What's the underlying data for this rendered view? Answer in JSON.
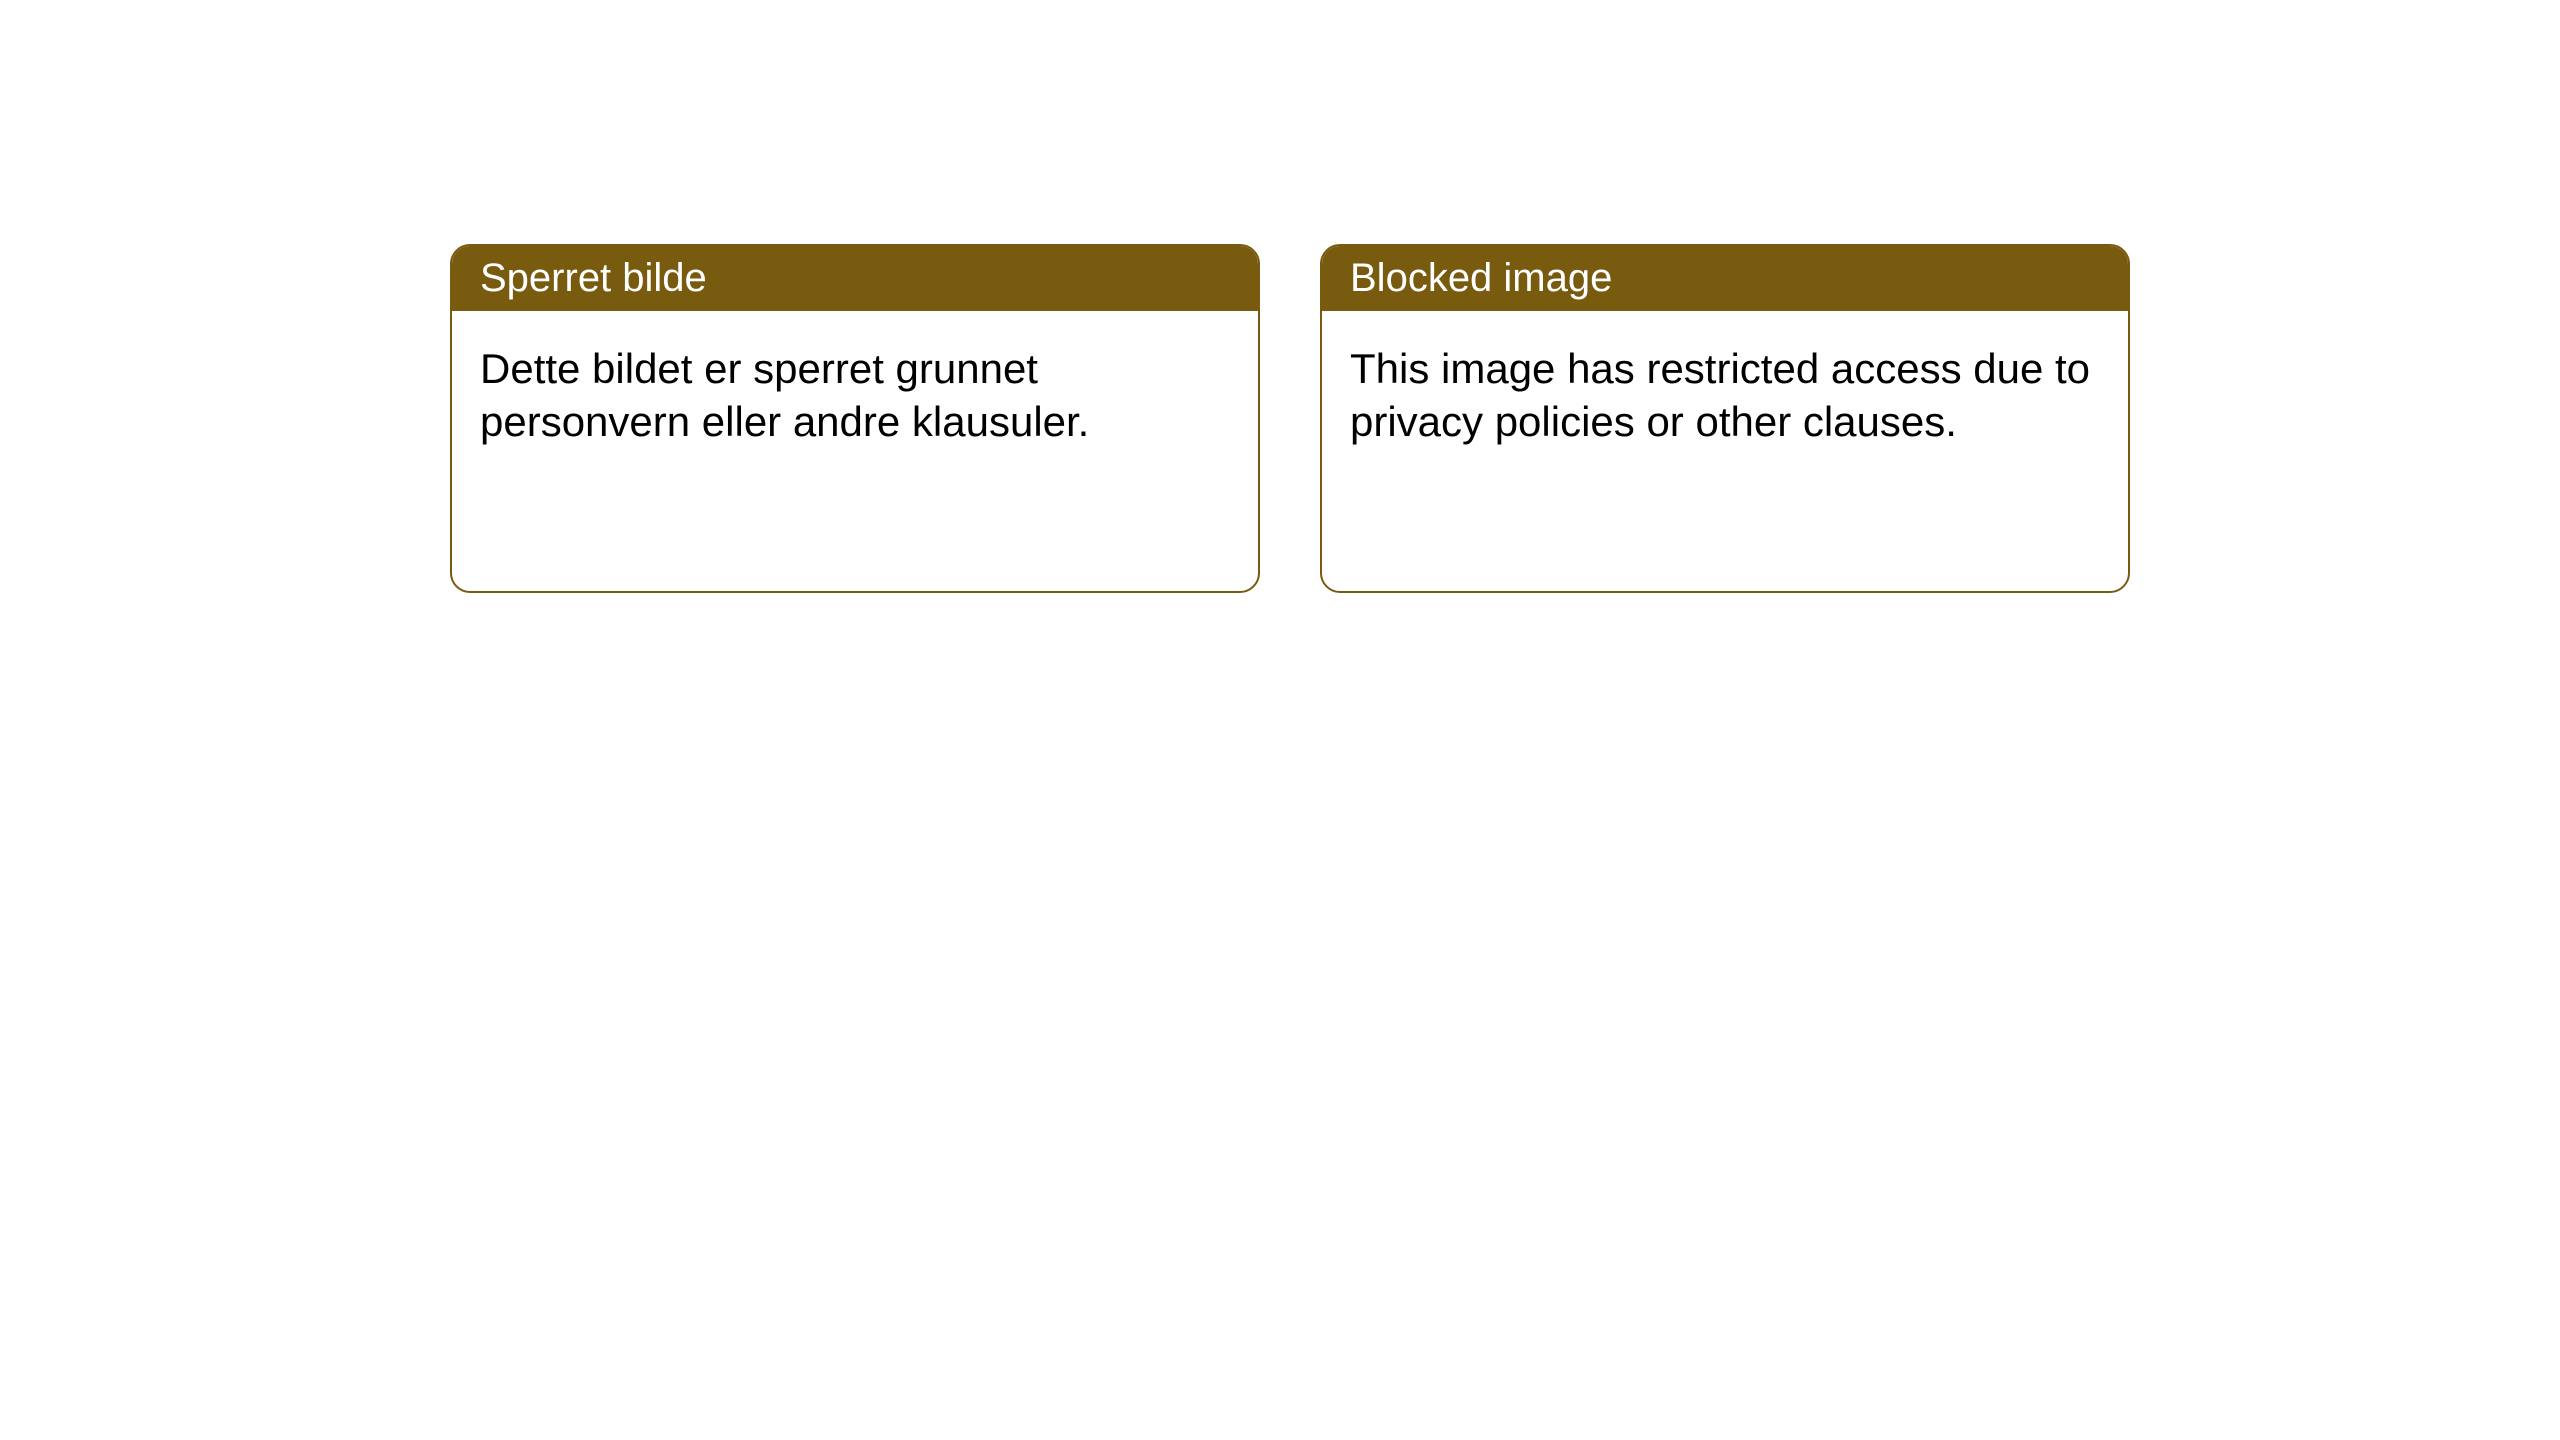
{
  "layout": {
    "background_color": "#ffffff",
    "card_border_color": "#785b0f",
    "card_border_width": 2,
    "card_border_radius": 20,
    "header_bg_color": "#785b0f",
    "header_text_color": "#ffffff",
    "body_text_color": "#000000",
    "header_fontsize": 40,
    "body_fontsize": 42
  },
  "cards": [
    {
      "title": "Sperret bilde",
      "body": "Dette bildet er sperret grunnet personvern eller andre klausuler."
    },
    {
      "title": "Blocked image",
      "body": "This image has restricted access due to privacy policies or other clauses."
    }
  ]
}
